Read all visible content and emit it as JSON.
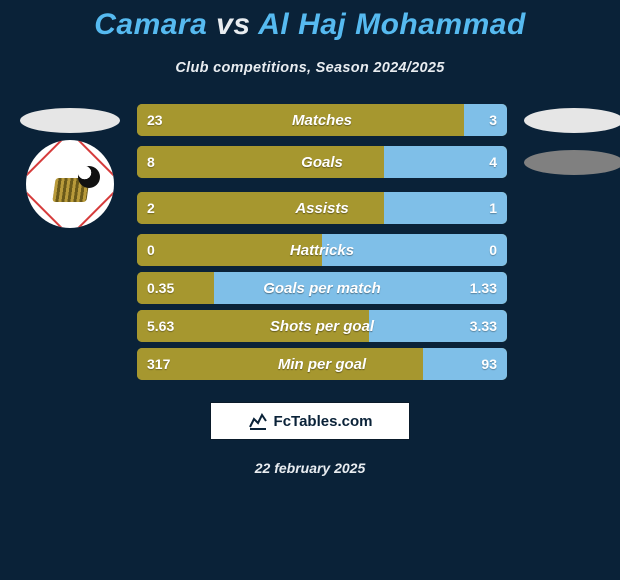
{
  "background_color": "#0a2238",
  "text_color": "#e8ecf0",
  "accent_color": "#56baf0",
  "title": {
    "prefix": "Camara",
    "middle": " vs ",
    "suffix": "Al Haj Mohammad"
  },
  "subtitle": "Club competitions, Season 2024/2025",
  "bar_colors": {
    "left": "#a6972f",
    "right": "#7fbfe8"
  },
  "rows": [
    {
      "label": "Matches",
      "left": "23",
      "right": "3",
      "lv": 23,
      "rv": 3
    },
    {
      "label": "Goals",
      "left": "8",
      "right": "4",
      "lv": 8,
      "rv": 4
    },
    {
      "label": "Assists",
      "left": "2",
      "right": "1",
      "lv": 2,
      "rv": 1
    },
    {
      "label": "Hattricks",
      "left": "0",
      "right": "0",
      "lv": 0,
      "rv": 0
    },
    {
      "label": "Goals per match",
      "left": "0.35",
      "right": "1.33",
      "lv": 0.35,
      "rv": 1.33
    },
    {
      "label": "Shots per goal",
      "left": "5.63",
      "right": "3.33",
      "lv": 5.63,
      "rv": 3.33
    },
    {
      "label": "Min per goal",
      "left": "317",
      "right": "93",
      "lv": 317,
      "rv": 93
    }
  ],
  "source": "FcTables.com",
  "date": "22 february 2025"
}
